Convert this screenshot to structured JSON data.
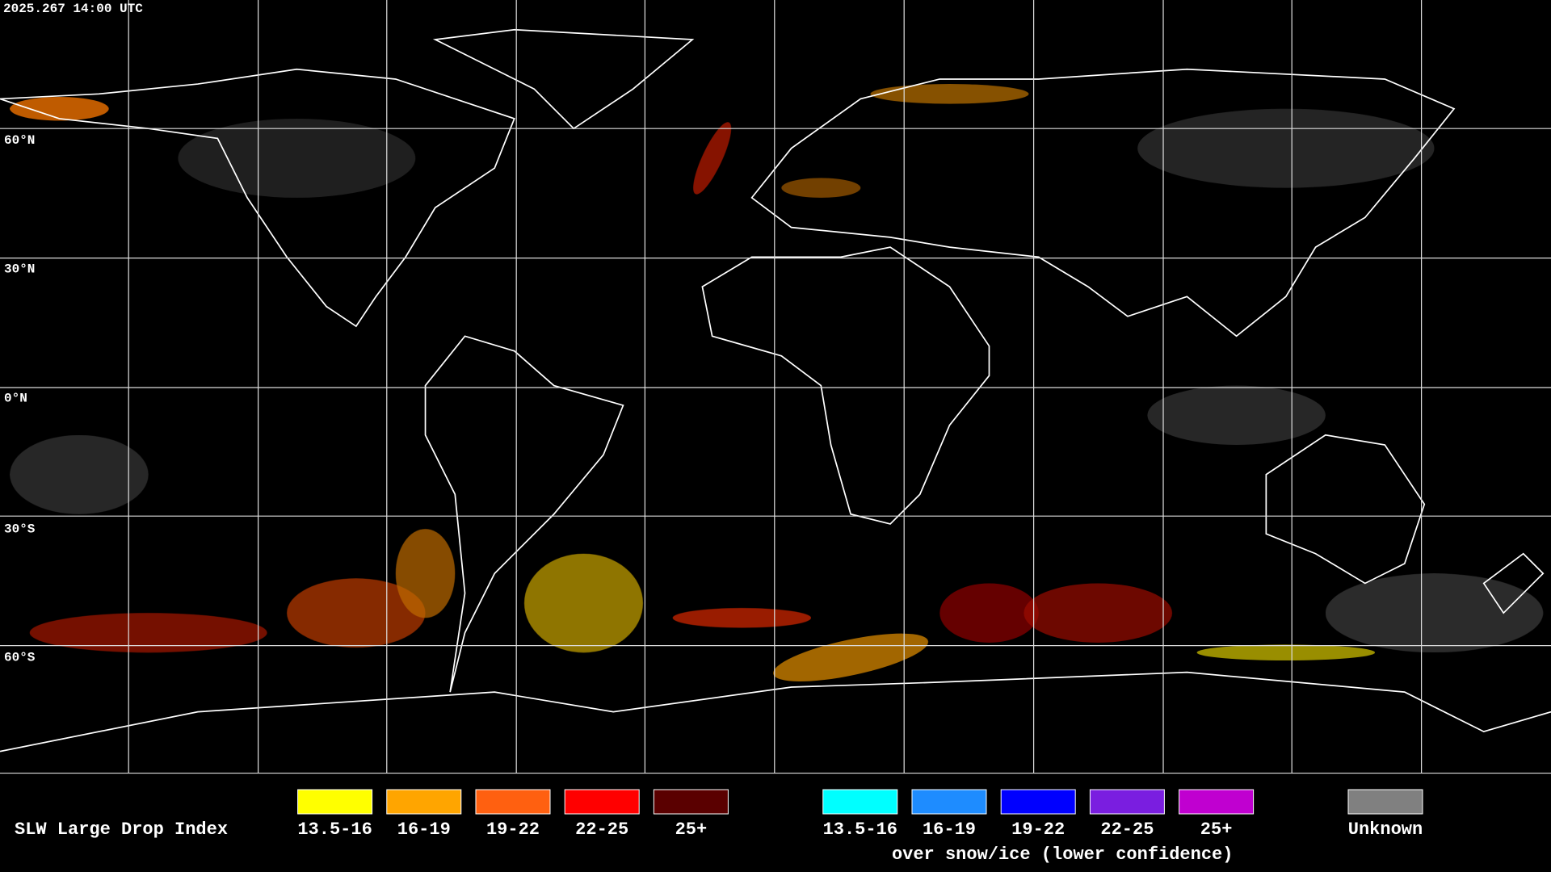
{
  "header": {
    "timestamp": "2025.267 14:00 UTC"
  },
  "map": {
    "latitude_labels": [
      "60°N",
      "30°N",
      "0°N",
      "30°S",
      "60°S"
    ]
  },
  "legend": {
    "title": "SLW Large Drop Index",
    "groups": [
      {
        "items": [
          {
            "label": "13.5-16",
            "color": "#ffff00"
          },
          {
            "label": "16-19",
            "color": "#ffa500"
          },
          {
            "label": "19-22",
            "color": "#ff6010"
          },
          {
            "label": "22-25",
            "color": "#ff0000"
          },
          {
            "label": "25+",
            "color": "#5a0000"
          }
        ]
      },
      {
        "items": [
          {
            "label": "13.5-16",
            "color": "#00ffff"
          },
          {
            "label": "16-19",
            "color": "#1e8cff"
          },
          {
            "label": "19-22",
            "color": "#0000ff"
          },
          {
            "label": "22-25",
            "color": "#7a1ee0"
          },
          {
            "label": "25+",
            "color": "#c000d0"
          }
        ],
        "caption": "over snow/ice (lower confidence)"
      }
    ],
    "unknown": {
      "label": "Unknown",
      "color": "#808080"
    }
  }
}
